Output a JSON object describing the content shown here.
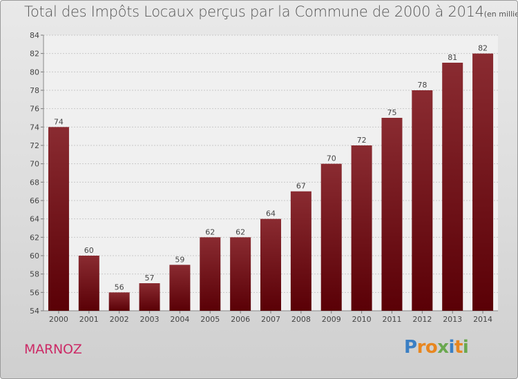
{
  "chart_data": {
    "type": "bar",
    "title": "Total des Impôts Locaux perçus par la Commune de 2000 à 2014",
    "unit": "(en milliers d'€)",
    "xlabel": "",
    "ylabel": "",
    "categories": [
      "2000",
      "2001",
      "2002",
      "2003",
      "2004",
      "2005",
      "2006",
      "2007",
      "2008",
      "2009",
      "2010",
      "2011",
      "2012",
      "2013",
      "2014"
    ],
    "values": [
      74,
      60,
      56,
      57,
      59,
      62,
      62,
      64,
      67,
      70,
      72,
      75,
      78,
      81,
      82
    ],
    "ylim": [
      54,
      84
    ],
    "yticks": [
      54,
      56,
      58,
      60,
      62,
      64,
      66,
      68,
      70,
      72,
      74,
      76,
      78,
      80,
      82,
      84
    ],
    "grid": true,
    "bar_color": "#6e1218"
  },
  "footer": {
    "commune": "MARNOZ",
    "logo": {
      "text": "Proxiti",
      "letter_colors": [
        "#3b7fc4",
        "#e8861f",
        "#e8861f",
        "#6aa84f",
        "#3b7fc4",
        "#e8861f",
        "#6aa84f"
      ]
    }
  }
}
